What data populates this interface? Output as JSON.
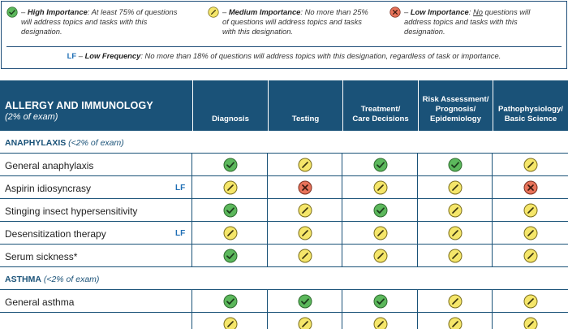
{
  "legend": {
    "high": {
      "label": "High Importance",
      "text_line1": ": At least 75% of questions",
      "text_line2": "will address topics and tasks with this",
      "text_line3": "designation.",
      "prefix": " – "
    },
    "medium": {
      "label": "Medium Importance",
      "text_line1": ": No more than 25%",
      "text_line2": "of questions will address topics and tasks",
      "text_line3": "with this designation.",
      "prefix": " – "
    },
    "low": {
      "label": "Low Importance",
      "text_pre": ": ",
      "text_underlined": "No",
      "text_line1": " questions will",
      "text_line2": "address topics and tasks with this",
      "text_line3": "designation.",
      "prefix": " – "
    },
    "lf": {
      "code": "LF",
      "dash": " – ",
      "label": "Low Frequency",
      "text": ": No more than 18% of questions will address topics with this designation, regardless of task or importance."
    }
  },
  "table": {
    "title": "ALLERGY AND IMMUNOLOGY",
    "subtitle": "(2% of exam)",
    "columns": [
      {
        "line1": "Diagnosis",
        "line2": "",
        "line3": ""
      },
      {
        "line1": "Testing",
        "line2": "",
        "line3": ""
      },
      {
        "line1": "Treatment/",
        "line2": "Care Decisions",
        "line3": ""
      },
      {
        "line1": "Risk Assessment/",
        "line2": "Prognosis/",
        "line3": "Epidemiology"
      },
      {
        "line1": "Pathophysiology/",
        "line2": "Basic Science",
        "line3": ""
      }
    ],
    "sections": [
      {
        "name": "ANAPHYLAXIS",
        "pct": " (<2% of exam)",
        "rows": [
          {
            "label": "General anaphylaxis",
            "lf": "",
            "ratings": [
              "high",
              "medium",
              "high",
              "high",
              "medium"
            ]
          },
          {
            "label": "Aspirin idiosyncrasy",
            "lf": "LF",
            "ratings": [
              "medium",
              "low",
              "medium",
              "medium",
              "low"
            ]
          },
          {
            "label": "Stinging insect hypersensitivity",
            "lf": "",
            "ratings": [
              "high",
              "medium",
              "high",
              "medium",
              "medium"
            ]
          },
          {
            "label": "Desensitization therapy",
            "lf": "LF",
            "ratings": [
              "medium",
              "medium",
              "medium",
              "medium",
              "medium"
            ]
          },
          {
            "label": "Serum sickness*",
            "lf": "",
            "ratings": [
              "high",
              "medium",
              "medium",
              "medium",
              "medium"
            ]
          }
        ]
      },
      {
        "name": "ASTHMA",
        "pct": " (<2% of exam)",
        "rows": [
          {
            "label": "General asthma",
            "lf": "",
            "ratings": [
              "high",
              "high",
              "high",
              "medium",
              "medium"
            ]
          },
          {
            "label": "",
            "lf": "",
            "ratings": [
              "medium",
              "medium",
              "medium",
              "medium",
              "medium"
            ]
          }
        ]
      }
    ]
  },
  "colors": {
    "header_bg": "#1a5278",
    "high": "#5cb85c",
    "medium": "#f5e66a",
    "low": "#e8735a",
    "lf_text": "#1f6fb5"
  }
}
